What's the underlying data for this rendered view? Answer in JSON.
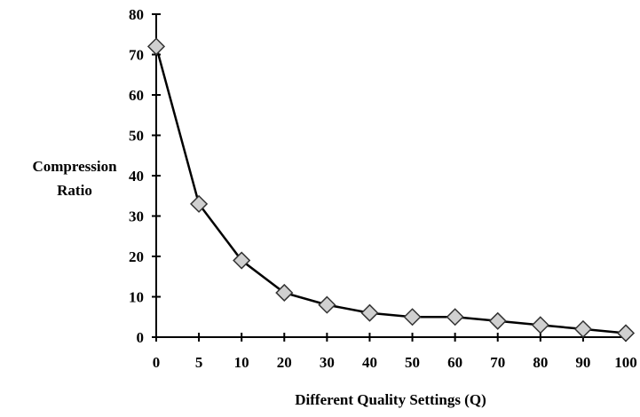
{
  "chart_data": {
    "type": "line",
    "title": "",
    "xlabel": "Different Quality Settings (Q)",
    "ylabel_lines": [
      "Compression",
      "Ratio"
    ],
    "categories": [
      "0",
      "5",
      "10",
      "20",
      "30",
      "40",
      "50",
      "60",
      "70",
      "80",
      "90",
      "100"
    ],
    "y_ticks": [
      0,
      10,
      20,
      30,
      40,
      50,
      60,
      70,
      80
    ],
    "ylim": [
      0,
      80
    ],
    "grid": false,
    "legend": "none",
    "series": [
      {
        "values": [
          72,
          33,
          19,
          11,
          8,
          6,
          5,
          5,
          4,
          3,
          2,
          1
        ],
        "marker": "diamond",
        "marker_color": "#d0d0d0",
        "line_color": "#000000"
      }
    ]
  }
}
